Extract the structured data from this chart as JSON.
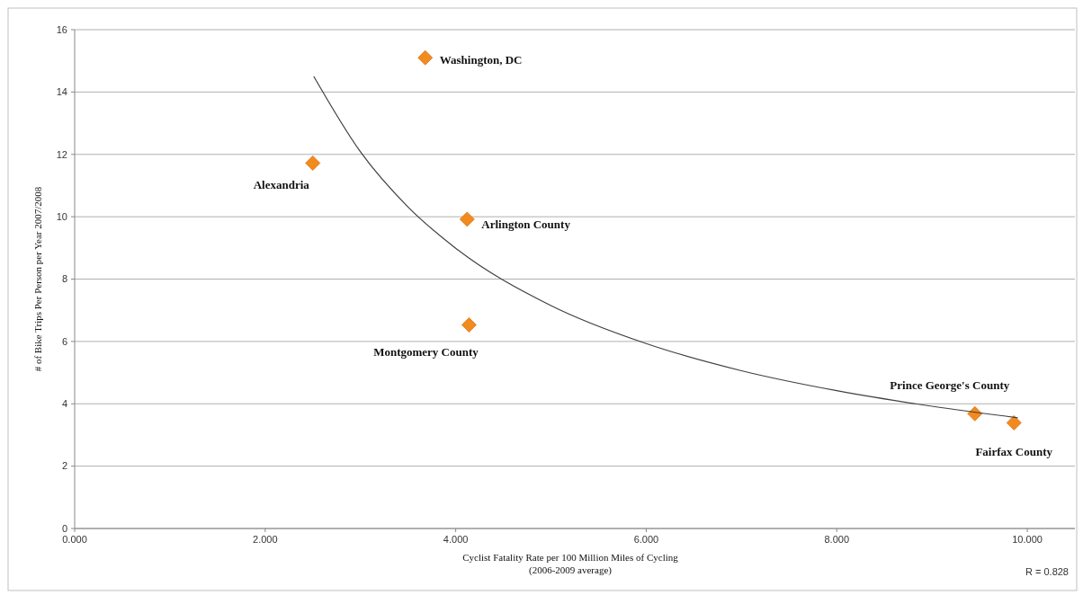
{
  "chart_data": {
    "type": "scatter",
    "xlabel": "Cyclist Fatality Rate per 100 Million Miles of Cycling\n(2006-2009 average)",
    "ylabel": "# of Bike Trips Per Person per Year 2007/2008",
    "xlim": [
      0,
      10.5
    ],
    "xticks": [
      {
        "value": 0,
        "label": "0.000"
      },
      {
        "value": 2,
        "label": "2.000"
      },
      {
        "value": 4,
        "label": "4.000"
      },
      {
        "value": 6,
        "label": "6.000"
      },
      {
        "value": 8,
        "label": "8.000"
      },
      {
        "value": 10,
        "label": "10.000"
      }
    ],
    "ylim": [
      0,
      16
    ],
    "yticks": [
      0,
      2,
      4,
      6,
      8,
      10,
      12,
      14,
      16
    ],
    "grid": "y",
    "marker": "diamond",
    "series": [
      {
        "color": "#f28a1e",
        "x": [
          3.68,
          2.5,
          4.12,
          4.14,
          9.45,
          9.86
        ],
        "values": [
          15.1,
          11.72,
          9.92,
          6.53,
          3.68,
          3.39
        ]
      },
      {
        "type": "line",
        "color": "#404040",
        "marker": "none",
        "x": [
          2.51,
          3,
          3.5,
          4,
          5,
          6,
          7,
          8,
          9,
          9.9
        ],
        "values": [
          14.5,
          12.08,
          10.31,
          8.99,
          7.15,
          5.93,
          5.06,
          4.42,
          3.92,
          3.55
        ]
      }
    ],
    "annotations": [
      {
        "text": "Washington, DC",
        "x": 3.68,
        "y": 15.1
      },
      {
        "text": "Alexandria",
        "x": 2.5,
        "y": 11.72
      },
      {
        "text": "Arlington County",
        "x": 4.12,
        "y": 9.92
      },
      {
        "text": "Montgomery County",
        "x": 4.14,
        "y": 6.53
      },
      {
        "text": "Prince George's County",
        "x": 9.45,
        "y": 3.68
      },
      {
        "text": "Fairfax County",
        "x": 9.86,
        "y": 3.39
      },
      "R = 0.828"
    ]
  }
}
